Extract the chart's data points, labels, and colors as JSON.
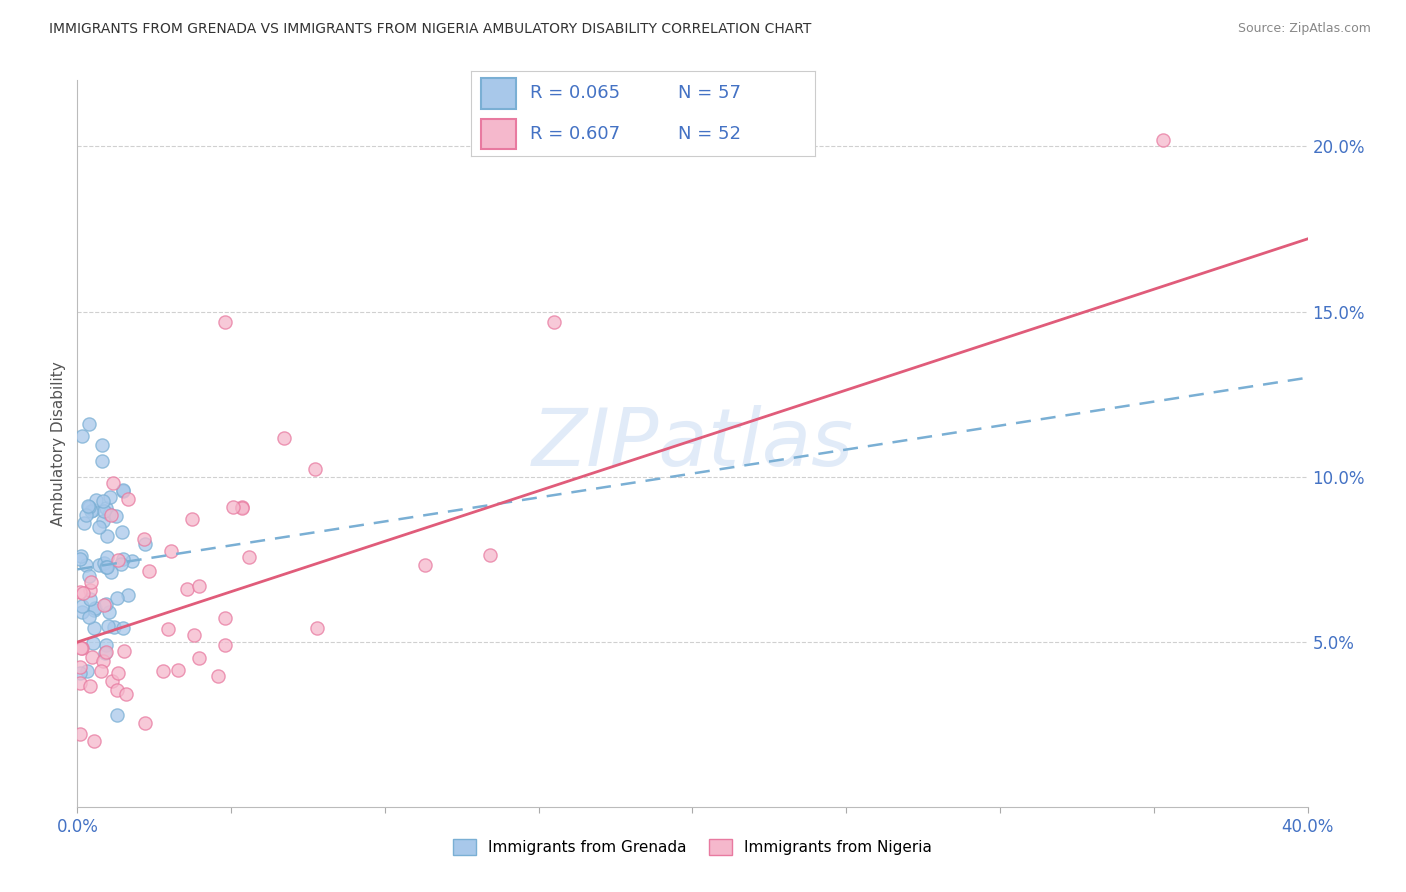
{
  "title": "IMMIGRANTS FROM GRENADA VS IMMIGRANTS FROM NIGERIA AMBULATORY DISABILITY CORRELATION CHART",
  "source": "Source: ZipAtlas.com",
  "ylabel": "Ambulatory Disability",
  "xlim": [
    0.0,
    0.4
  ],
  "ylim": [
    0.0,
    0.22
  ],
  "ytick_vals": [
    0.05,
    0.1,
    0.15,
    0.2
  ],
  "ytick_labels": [
    "5.0%",
    "10.0%",
    "15.0%",
    "20.0%"
  ],
  "xtick_vals": [
    0.0,
    0.05,
    0.1,
    0.15,
    0.2,
    0.25,
    0.3,
    0.35,
    0.4
  ],
  "xtick_labels": [
    "0.0%",
    "",
    "",
    "",
    "",
    "",
    "",
    "",
    "40.0%"
  ],
  "grenada_color": "#a8c8ea",
  "grenada_edge": "#7aafd4",
  "nigeria_color": "#f5b8cc",
  "nigeria_edge": "#e87aa0",
  "grenada_line_color": "#7aafd4",
  "nigeria_line_color": "#e05c7a",
  "legend_color": "#4472c4",
  "grenada_R": 0.065,
  "grenada_N": 57,
  "nigeria_R": 0.607,
  "nigeria_N": 52,
  "watermark": "ZIPatlas",
  "grid_color": "#d0d0d0",
  "tick_color": "#4472c4",
  "title_color": "#333333",
  "source_color": "#888888",
  "background": "#ffffff",
  "grenada_trend_x0": 0.0,
  "grenada_trend_y0": 0.072,
  "grenada_trend_x1": 0.4,
  "grenada_trend_y1": 0.13,
  "nigeria_trend_x0": 0.0,
  "nigeria_trend_y0": 0.05,
  "nigeria_trend_x1": 0.4,
  "nigeria_trend_y1": 0.172
}
